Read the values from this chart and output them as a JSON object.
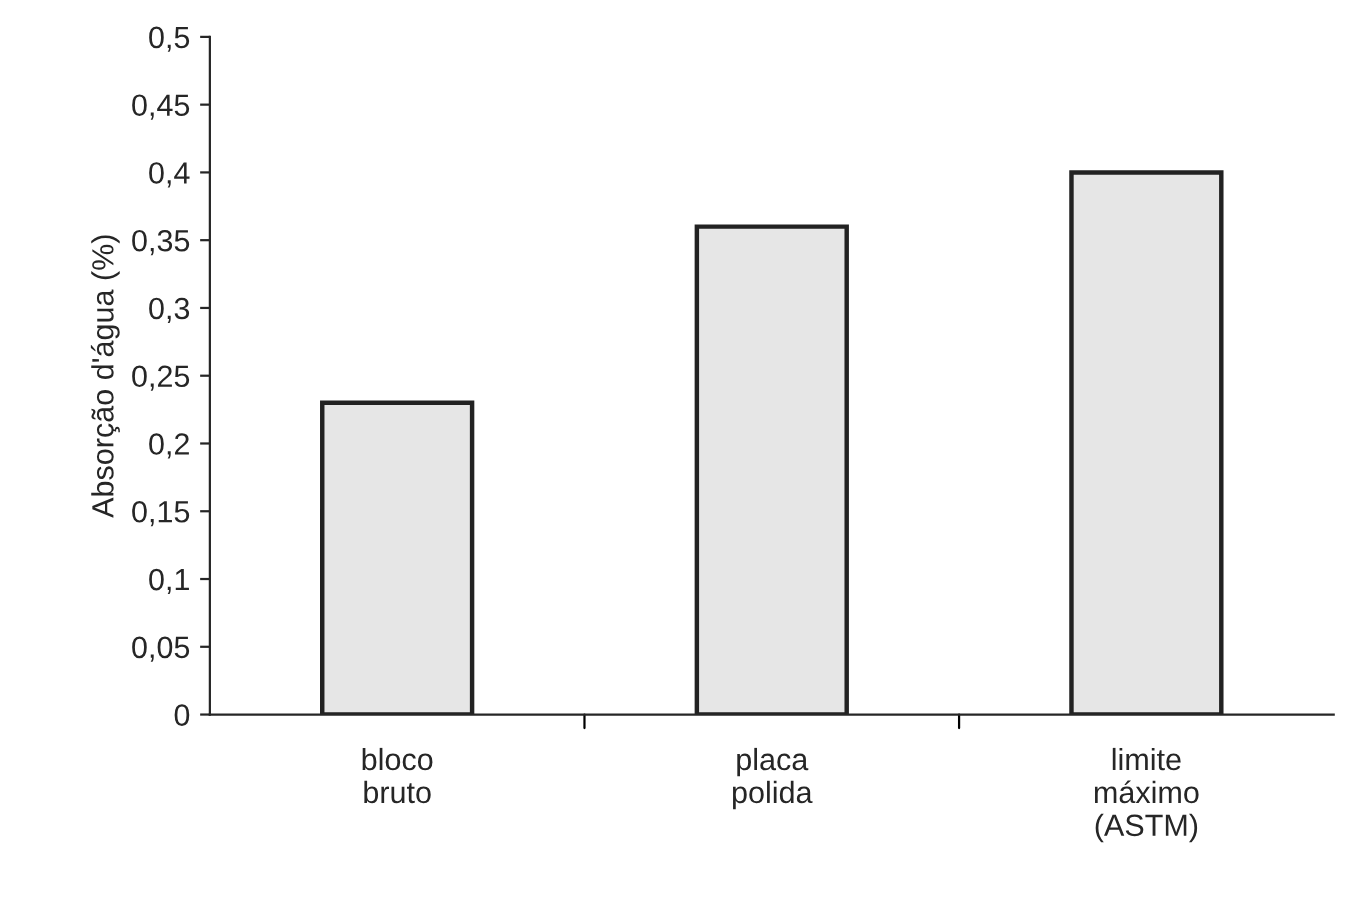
{
  "chart_data": {
    "type": "bar",
    "ylabel": "Absorção d'água (%)",
    "categories": [
      "bloco\nbruto",
      "placa\npolida",
      "limite\nmáximo\n(ASTM)"
    ],
    "values": [
      0.23,
      0.36,
      0.4
    ],
    "color": "#e6e6e6",
    "ylim": [
      0,
      0.5
    ],
    "yticks": [
      0,
      {
        "value": 0.05,
        "label": "0,05"
      },
      {
        "value": 0.1,
        "label": "0,1"
      },
      {
        "value": 0.15,
        "label": "0,15"
      },
      {
        "value": 0.2,
        "label": "0,2"
      },
      {
        "value": 0.25,
        "label": "0,25"
      },
      {
        "value": 0.3,
        "label": "0,3"
      },
      {
        "value": 0.35,
        "label": "0,35"
      },
      {
        "value": 0.4,
        "label": "0,4"
      },
      {
        "value": 0.45,
        "label": "0,45"
      },
      {
        "value": 0.5,
        "label": "0,5"
      }
    ],
    "grid": false,
    "legend": false
  }
}
